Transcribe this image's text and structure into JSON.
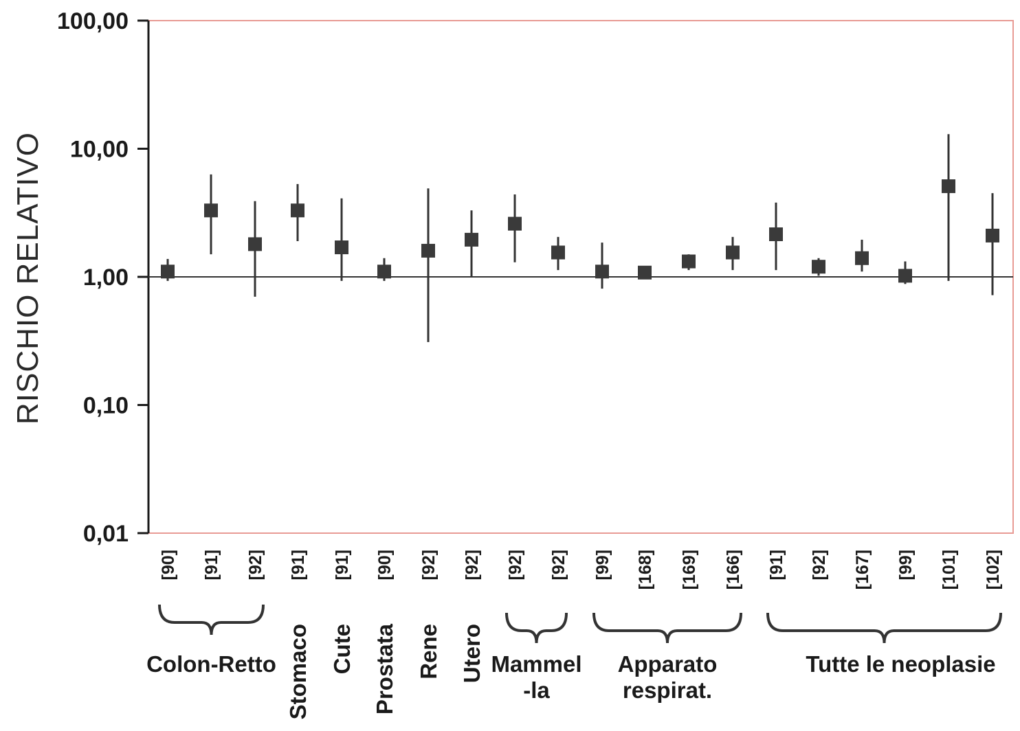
{
  "chart_data": {
    "type": "scatter",
    "ylabel": "RISCHIO RELATIVO",
    "yscale": "log",
    "ylim": [
      0.01,
      100
    ],
    "yticks": [
      "100,00",
      "10,00",
      "1,00",
      "0,10",
      "0,01"
    ],
    "reference_line": 1.0,
    "categories": [
      "[90]",
      "[91]",
      "[92]",
      "[91]",
      "[91]",
      "[90]",
      "[92]",
      "[92]",
      "[92]",
      "[92]",
      "[99]",
      "[168]",
      "[169]",
      "[166]",
      "[91]",
      "[92]",
      "[167]",
      "[99]",
      "[101]",
      "[102]"
    ],
    "points": [
      {
        "ref": "[90]",
        "rr": 1.1,
        "low": 0.93,
        "high": 1.38
      },
      {
        "ref": "[91]",
        "rr": 3.3,
        "low": 1.5,
        "high": 6.3
      },
      {
        "ref": "[92]",
        "rr": 1.8,
        "low": 0.7,
        "high": 3.9
      },
      {
        "ref": "[91]",
        "rr": 3.3,
        "low": 1.9,
        "high": 5.3
      },
      {
        "ref": "[91]",
        "rr": 1.7,
        "low": 0.93,
        "high": 4.1
      },
      {
        "ref": "[90]",
        "rr": 1.1,
        "low": 0.93,
        "high": 1.4
      },
      {
        "ref": "[92]",
        "rr": 1.6,
        "low": 0.31,
        "high": 4.9
      },
      {
        "ref": "[92]",
        "rr": 1.95,
        "low": 1.0,
        "high": 3.3
      },
      {
        "ref": "[92]",
        "rr": 2.6,
        "low": 1.3,
        "high": 4.4
      },
      {
        "ref": "[92]",
        "rr": 1.55,
        "low": 1.13,
        "high": 2.05
      },
      {
        "ref": "[99]",
        "rr": 1.1,
        "low": 0.81,
        "high": 1.85
      },
      {
        "ref": "[168]",
        "rr": 1.08,
        "low": 1.0,
        "high": 1.18
      },
      {
        "ref": "[169]",
        "rr": 1.32,
        "low": 1.13,
        "high": 1.5
      },
      {
        "ref": "[166]",
        "rr": 1.55,
        "low": 1.13,
        "high": 2.05
      },
      {
        "ref": "[91]",
        "rr": 2.15,
        "low": 1.13,
        "high": 3.8
      },
      {
        "ref": "[92]",
        "rr": 1.2,
        "low": 1.02,
        "high": 1.4
      },
      {
        "ref": "[167]",
        "rr": 1.4,
        "low": 1.1,
        "high": 1.95
      },
      {
        "ref": "[99]",
        "rr": 1.02,
        "low": 0.88,
        "high": 1.32
      },
      {
        "ref": "[101]",
        "rr": 5.1,
        "low": 0.93,
        "high": 13.0
      },
      {
        "ref": "[102]",
        "rr": 2.1,
        "low": 0.72,
        "high": 4.5
      }
    ],
    "groups": [
      {
        "label": "Colon-Retto",
        "from": 0,
        "to": 2,
        "brace": true,
        "orientation": "horizontal"
      },
      {
        "label": "Stomaco",
        "from": 3,
        "to": 3,
        "brace": false,
        "orientation": "vertical"
      },
      {
        "label": "Cute",
        "from": 4,
        "to": 4,
        "brace": false,
        "orientation": "vertical"
      },
      {
        "label": "Prostata",
        "from": 5,
        "to": 5,
        "brace": false,
        "orientation": "vertical"
      },
      {
        "label": "Rene",
        "from": 6,
        "to": 6,
        "brace": false,
        "orientation": "vertical"
      },
      {
        "label": "Utero",
        "from": 7,
        "to": 7,
        "brace": false,
        "orientation": "vertical"
      },
      {
        "label": "Mammel -la",
        "lines": [
          "Mammel",
          "-la"
        ],
        "from": 8,
        "to": 9,
        "brace": true,
        "orientation": "horizontal"
      },
      {
        "label": "Apparato respirat.",
        "lines": [
          "Apparato",
          "respirat."
        ],
        "from": 10,
        "to": 13,
        "brace": true,
        "orientation": "horizontal"
      },
      {
        "label": "Tutte le neoplasie",
        "from": 14,
        "to": 19,
        "brace": true,
        "orientation": "horizontal"
      }
    ]
  }
}
